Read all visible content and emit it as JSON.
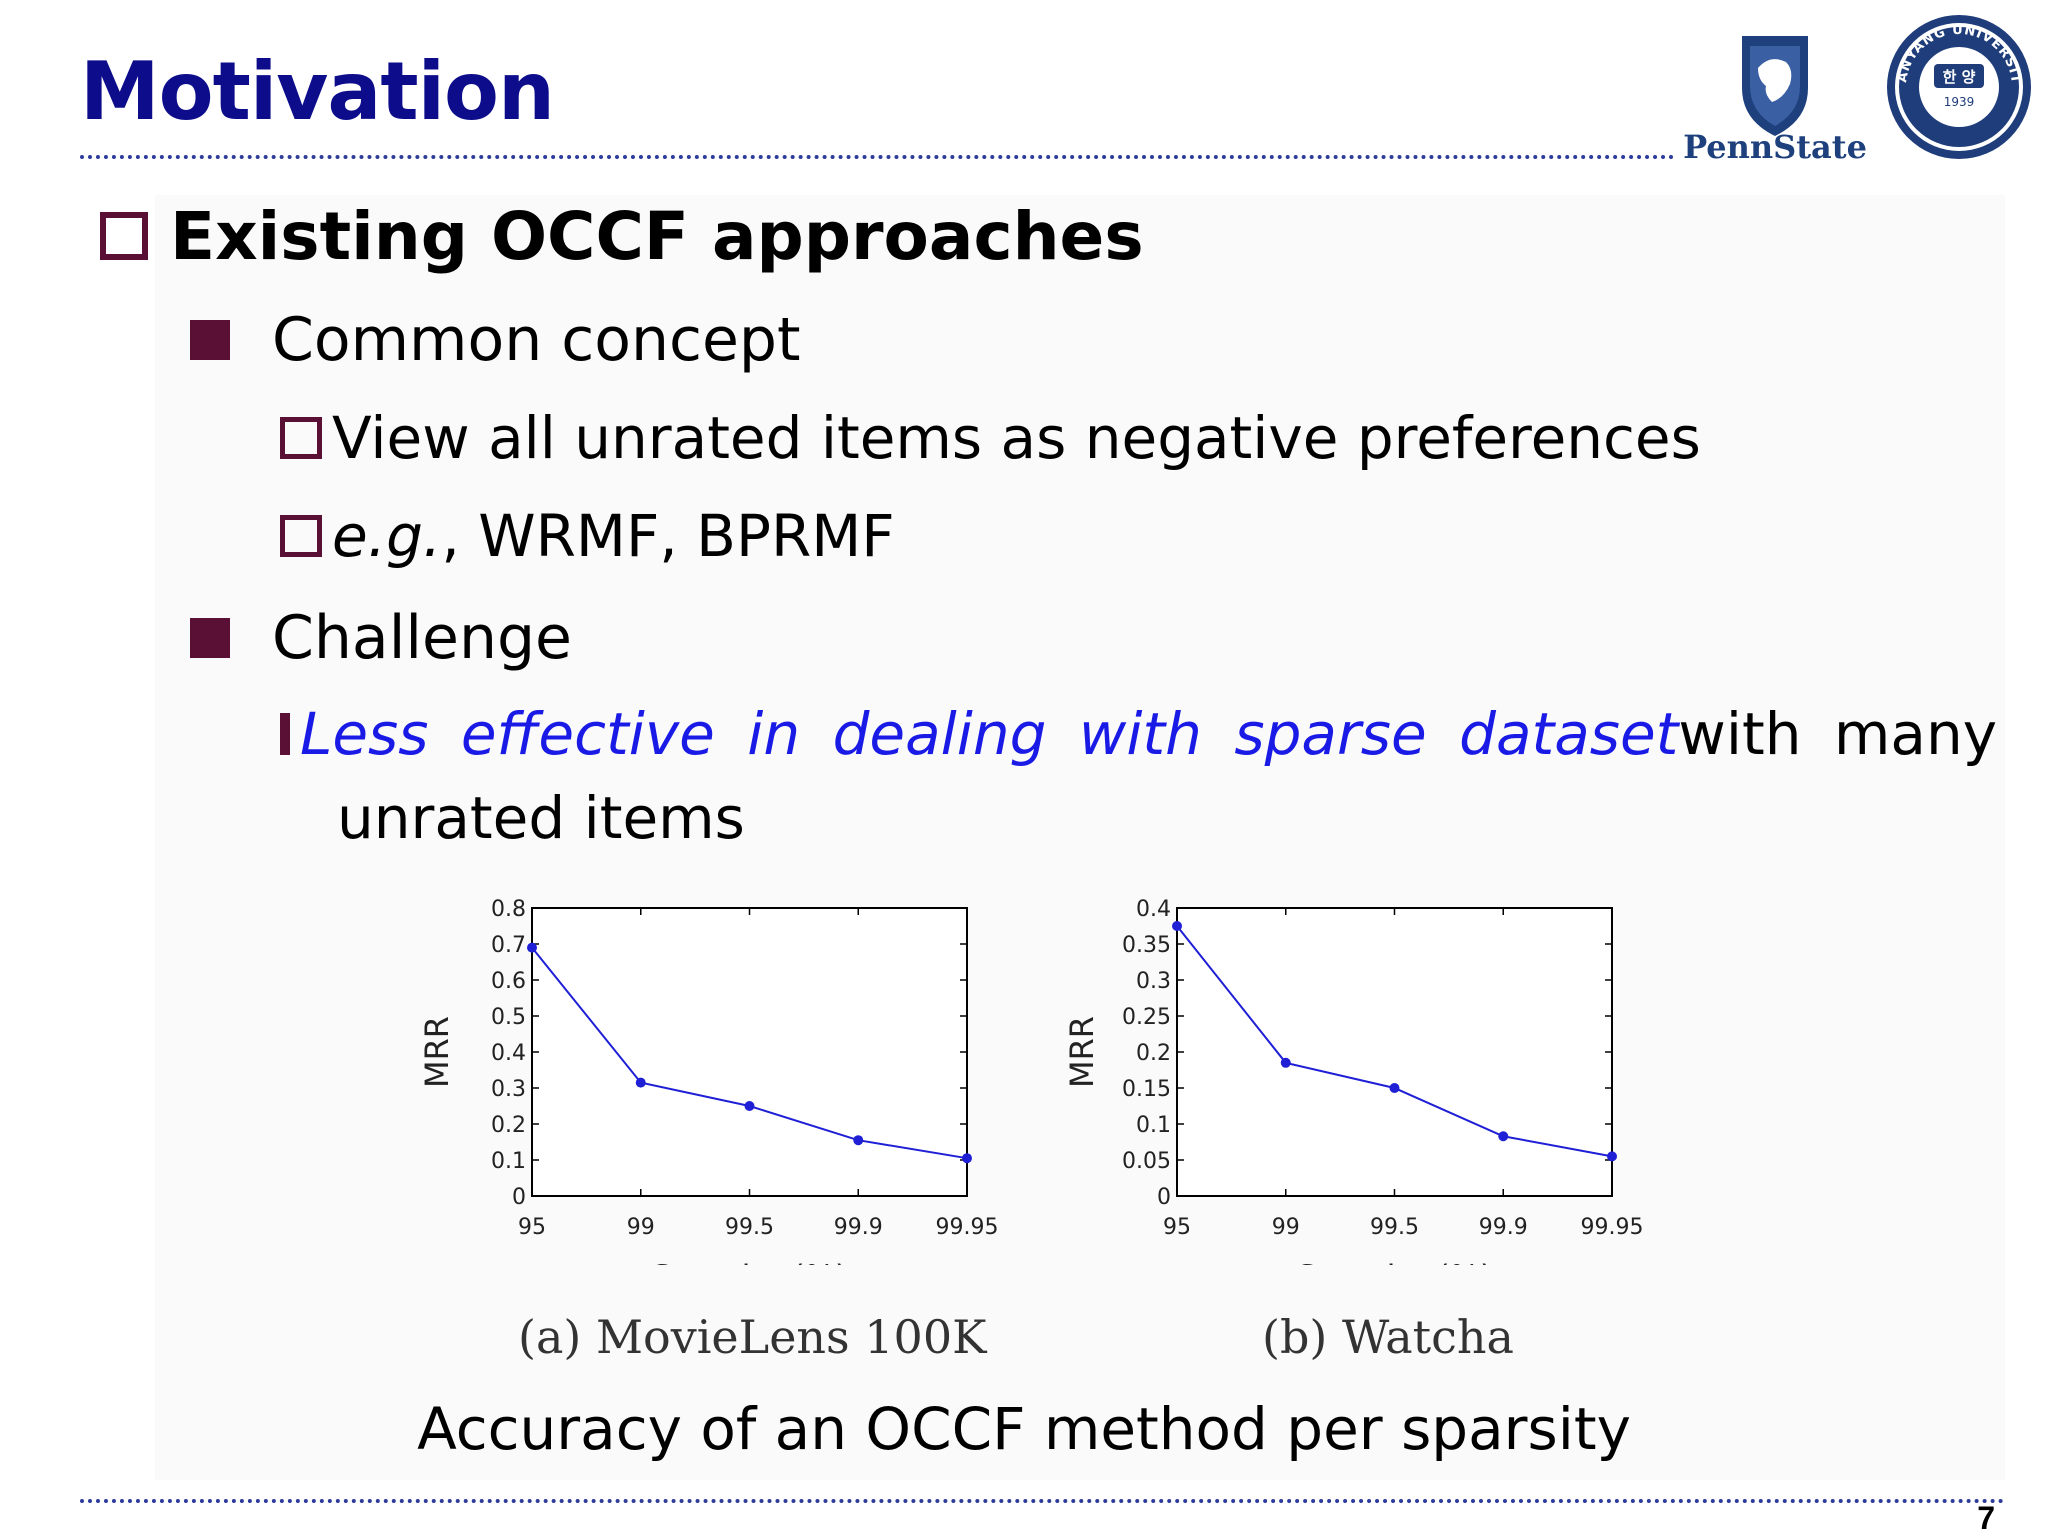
{
  "slide": {
    "title": "Motivation",
    "page_number": "7"
  },
  "logos": {
    "pennstate_text": "PennState",
    "hanyang_text": "HANYANG UNIVERSITY",
    "hanyang_year": "1939",
    "hanyang_center": "한 양"
  },
  "bullets": {
    "l1": "Existing OCCF approaches",
    "common": "Common concept",
    "common_1": "View all unrated items as negative preferences",
    "common_2_italic": "e.g.",
    "common_2_rest": ", WRMF, BPRMF",
    "challenge": "Challenge",
    "challenge_1_emph": "Less effective in dealing with sparse dataset",
    "challenge_1_rest": " with many",
    "challenge_1_cont": "unrated items"
  },
  "chart_data": [
    {
      "type": "line",
      "caption": "(a) MovieLens 100K",
      "categories": [
        "95",
        "99",
        "99.5",
        "99.9",
        "99.95"
      ],
      "values": [
        0.69,
        0.315,
        0.25,
        0.155,
        0.105
      ],
      "xlabel": "Sparsity (%)",
      "ylabel": "MRR",
      "ylim": [
        0,
        0.8
      ],
      "yticks": [
        "0",
        "0.1",
        "0.2",
        "0.3",
        "0.4",
        "0.5",
        "0.6",
        "0.7",
        "0.8"
      ],
      "color": "#1f1fd6",
      "grid": false
    },
    {
      "type": "line",
      "caption": "(b) Watcha",
      "categories": [
        "95",
        "99",
        "99.5",
        "99.9",
        "99.95"
      ],
      "values": [
        0.375,
        0.185,
        0.15,
        0.083,
        0.055
      ],
      "xlabel": "Sparsity (%)",
      "ylabel": "MRR",
      "ylim": [
        0,
        0.4
      ],
      "yticks": [
        "0",
        "0.05",
        "0.1",
        "0.15",
        "0.2",
        "0.25",
        "0.3",
        "0.35",
        "0.4"
      ],
      "color": "#1f1fd6",
      "grid": false
    }
  ],
  "figure_caption": "Accuracy of an OCCF method per sparsity"
}
